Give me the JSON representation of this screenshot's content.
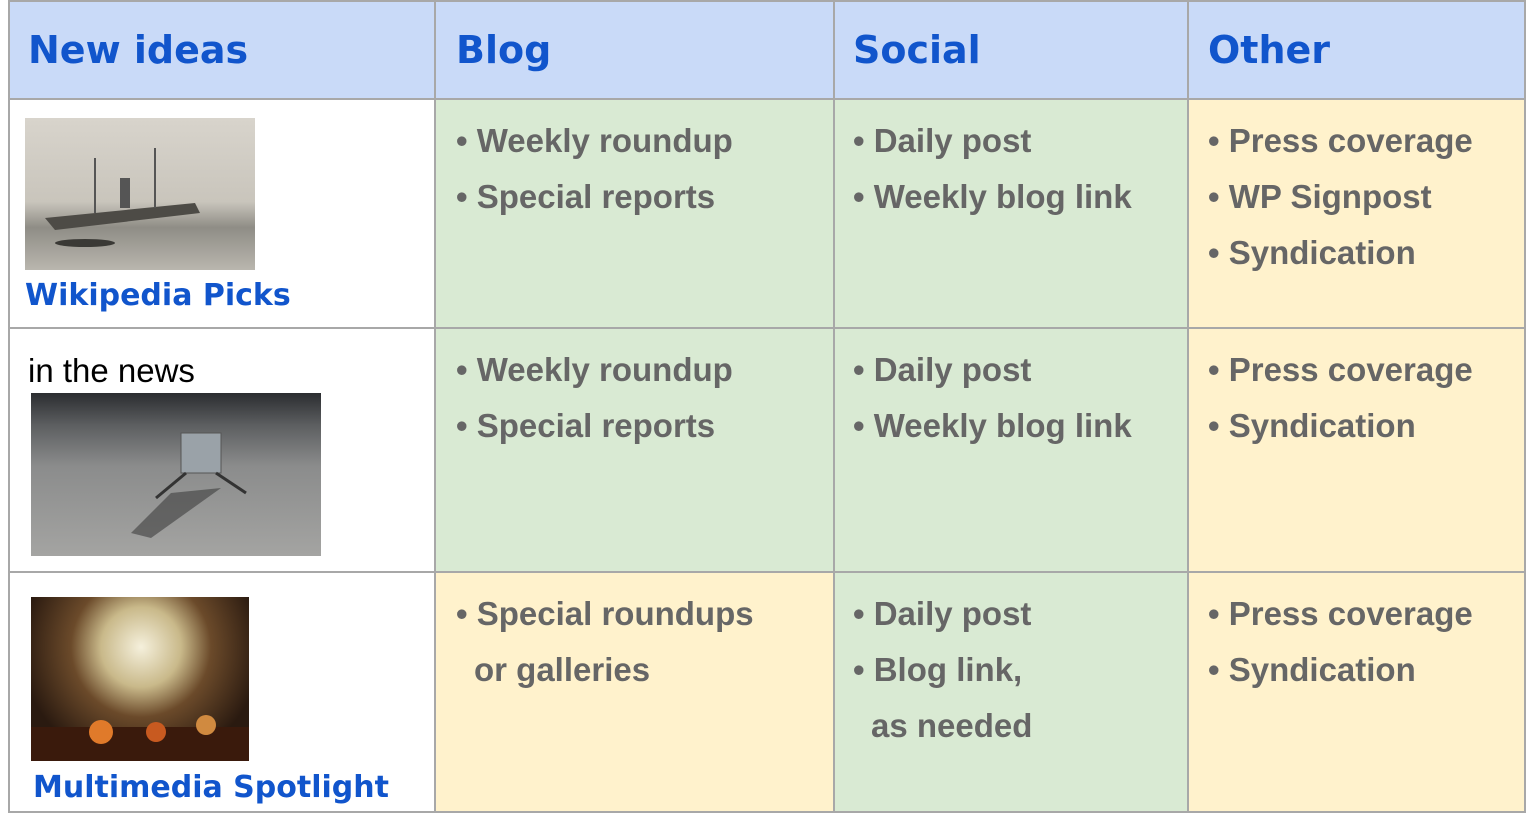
{
  "table": {
    "header": [
      "New ideas",
      "Blog",
      "Social",
      "Other"
    ],
    "rows": [
      {
        "label": "Wikipedia Picks",
        "cells": [
          [
            "• Weekly roundup",
            "• Special reports"
          ],
          [
            "• Daily post",
            "• Weekly blog link"
          ],
          [
            "• Press coverage",
            "• WP Signpost",
            "• Syndication"
          ]
        ]
      },
      {
        "label": "in the news",
        "cells": [
          [
            "• Weekly roundup",
            "• Special reports"
          ],
          [
            "• Daily post",
            "• Weekly blog link"
          ],
          [
            "• Press coverage",
            "• Syndication"
          ]
        ]
      },
      {
        "label": "Multimedia Spotlight",
        "cells": [
          [
            "• Special roundups",
            "or galleries"
          ],
          [
            "• Daily post",
            "• Blog link,",
            "as needed"
          ],
          [
            "• Press coverage",
            "• Syndication"
          ]
        ]
      }
    ]
  }
}
